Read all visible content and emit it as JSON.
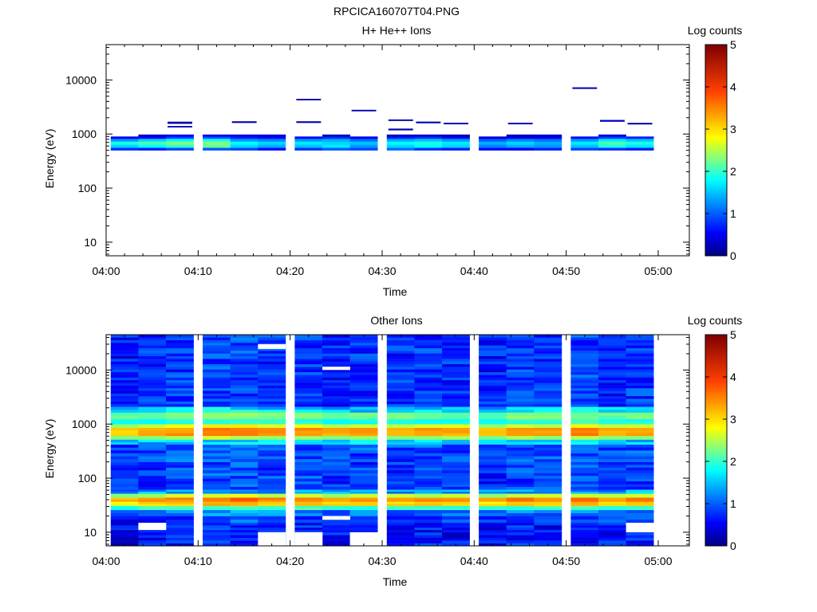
{
  "figure": {
    "title": "RPCICA160707T04.PNG"
  },
  "chart_data": [
    {
      "type": "heatmap",
      "title": "H+ He++ Ions",
      "xlabel": "Time",
      "ylabel": "Energy (eV)",
      "colorbar_label": "Log counts",
      "colorbar_ticks": [
        "0",
        "1",
        "2",
        "3",
        "4",
        "5"
      ],
      "x_ticks": [
        "04:00",
        "04:10",
        "04:20",
        "04:30",
        "04:40",
        "04:50",
        "05:00"
      ],
      "y_ticks": [
        "10",
        "100",
        "1000",
        "10000"
      ],
      "y_scale": "log",
      "ylim": [
        5.6,
        45000
      ],
      "clim": [
        0,
        5
      ],
      "time_bins": [
        "04:02",
        "04:05",
        "04:08",
        "04:12",
        "04:15",
        "04:18",
        "04:22",
        "04:25",
        "04:28",
        "04:32",
        "04:35",
        "04:38",
        "04:42",
        "04:45",
        "04:48",
        "04:52",
        "04:55",
        "04:58"
      ],
      "bands": [
        {
          "e_lo": 500,
          "e_hi": 560,
          "values": [
            0.8,
            0.7,
            0.9,
            1.0,
            0.9,
            0.6,
            0.8,
            1.0,
            0.9,
            1.1,
            0.8,
            0.7,
            0.6,
            0.5,
            0.7,
            0.9,
            0.8,
            0.7
          ]
        },
        {
          "e_lo": 560,
          "e_hi": 640,
          "values": [
            1.6,
            1.8,
            2.0,
            2.2,
            1.6,
            1.4,
            1.5,
            1.7,
            1.3,
            1.6,
            1.8,
            1.6,
            1.2,
            1.4,
            1.3,
            1.5,
            1.9,
            1.7
          ]
        },
        {
          "e_lo": 640,
          "e_hi": 730,
          "values": [
            1.9,
            2.1,
            2.3,
            2.3,
            1.8,
            1.6,
            1.7,
            1.6,
            1.5,
            1.8,
            1.9,
            1.7,
            1.4,
            1.6,
            1.4,
            1.7,
            2.1,
            1.9
          ]
        },
        {
          "e_lo": 730,
          "e_hi": 820,
          "values": [
            1.3,
            1.6,
            1.8,
            1.9,
            1.3,
            1.2,
            1.3,
            1.4,
            1.1,
            1.4,
            1.5,
            1.3,
            1.0,
            1.2,
            1.1,
            1.3,
            1.7,
            1.5
          ]
        },
        {
          "e_lo": 820,
          "e_hi": 900,
          "values": [
            0.5,
            0.6,
            0.9,
            1.0,
            0.7,
            0.6,
            0.6,
            0.8,
            0.5,
            0.7,
            0.8,
            0.6,
            0.4,
            0.5,
            0.5,
            0.6,
            0.9,
            0.7
          ]
        },
        {
          "e_lo": 900,
          "e_hi": 980,
          "values": [
            null,
            0.3,
            0.5,
            0.5,
            0.4,
            0.4,
            null,
            0.3,
            null,
            0.3,
            0.3,
            0.2,
            null,
            0.2,
            0.3,
            null,
            0.4,
            null
          ]
        }
      ],
      "sparse_marks": [
        {
          "time": "04:08",
          "e_lo": 1560,
          "e_hi": 1690,
          "value": 0.2
        },
        {
          "time": "04:08",
          "e_lo": 1340,
          "e_hi": 1410,
          "value": 0.2
        },
        {
          "time": "04:15",
          "e_lo": 1620,
          "e_hi": 1720,
          "value": 0.2
        },
        {
          "time": "04:22",
          "e_lo": 4250,
          "e_hi": 4480,
          "value": 0.2
        },
        {
          "time": "04:22",
          "e_lo": 1620,
          "e_hi": 1720,
          "value": 0.2
        },
        {
          "time": "04:28",
          "e_lo": 2650,
          "e_hi": 2800,
          "value": 0.2
        },
        {
          "time": "04:32",
          "e_lo": 1760,
          "e_hi": 1860,
          "value": 0.2
        },
        {
          "time": "04:32",
          "e_lo": 1180,
          "e_hi": 1260,
          "value": 0.2
        },
        {
          "time": "04:35",
          "e_lo": 1600,
          "e_hi": 1700,
          "value": 0.2
        },
        {
          "time": "04:38",
          "e_lo": 1530,
          "e_hi": 1620,
          "value": 0.2
        },
        {
          "time": "04:45",
          "e_lo": 1530,
          "e_hi": 1620,
          "value": 0.2
        },
        {
          "time": "04:52",
          "e_lo": 6900,
          "e_hi": 7300,
          "value": 0.2
        },
        {
          "time": "04:55",
          "e_lo": 1700,
          "e_hi": 1820,
          "value": 0.3
        },
        {
          "time": "04:58",
          "e_lo": 1520,
          "e_hi": 1610,
          "value": 0.2
        }
      ]
    },
    {
      "type": "heatmap",
      "title": "Other Ions",
      "xlabel": "Time",
      "ylabel": "Energy (eV)",
      "colorbar_label": "Log counts",
      "colorbar_ticks": [
        "0",
        "1",
        "2",
        "3",
        "4",
        "5"
      ],
      "x_ticks": [
        "04:00",
        "04:10",
        "04:20",
        "04:30",
        "04:40",
        "04:50",
        "05:00"
      ],
      "y_ticks": [
        "10",
        "100",
        "1000",
        "10000"
      ],
      "y_scale": "log",
      "ylim": [
        5.6,
        45000
      ],
      "clim": [
        0,
        5
      ],
      "time_bins": [
        "04:02",
        "04:05",
        "04:08",
        "04:12",
        "04:15",
        "04:18",
        "04:22",
        "04:25",
        "04:28",
        "04:32",
        "04:35",
        "04:38",
        "04:42",
        "04:45",
        "04:48",
        "04:52",
        "04:55",
        "04:58"
      ],
      "profile": [
        {
          "e_lo": 5.6,
          "e_hi": 10,
          "level": 0.6
        },
        {
          "e_lo": 10,
          "e_hi": 15,
          "level": 0.6
        },
        {
          "e_lo": 15,
          "e_hi": 20,
          "level": 0.8
        },
        {
          "e_lo": 20,
          "e_hi": 26,
          "level": 1.1
        },
        {
          "e_lo": 26,
          "e_hi": 31,
          "level": 2.0
        },
        {
          "e_lo": 31,
          "e_hi": 37,
          "level": 3.0
        },
        {
          "e_lo": 37,
          "e_hi": 44,
          "level": 3.4
        },
        {
          "e_lo": 44,
          "e_hi": 52,
          "level": 2.5
        },
        {
          "e_lo": 52,
          "e_hi": 62,
          "level": 1.3
        },
        {
          "e_lo": 62,
          "e_hi": 200,
          "level": 0.8
        },
        {
          "e_lo": 200,
          "e_hi": 420,
          "level": 0.9
        },
        {
          "e_lo": 420,
          "e_hi": 520,
          "level": 1.5
        },
        {
          "e_lo": 520,
          "e_hi": 610,
          "level": 2.4
        },
        {
          "e_lo": 610,
          "e_hi": 860,
          "level": 3.3
        },
        {
          "e_lo": 860,
          "e_hi": 1000,
          "level": 2.6
        },
        {
          "e_lo": 1000,
          "e_hi": 1250,
          "level": 1.9
        },
        {
          "e_lo": 1250,
          "e_hi": 1650,
          "level": 2.2
        },
        {
          "e_lo": 1650,
          "e_hi": 2100,
          "level": 1.5
        },
        {
          "e_lo": 2100,
          "e_hi": 45000,
          "level": 0.75
        }
      ],
      "column_offsets": [
        -0.2,
        0.0,
        0.1,
        0.25,
        0.3,
        0.1,
        0.15,
        0.0,
        0.05,
        0.0,
        0.1,
        0.0,
        -0.1,
        0.15,
        0.05,
        0.2,
        0.0,
        0.1
      ],
      "empty_cells": [
        {
          "time": "04:05",
          "e_lo": 11,
          "e_hi": 15
        },
        {
          "time": "04:18",
          "e_lo": 5.6,
          "e_hi": 10
        },
        {
          "time": "04:22",
          "e_lo": 5.6,
          "e_hi": 10
        },
        {
          "time": "04:25",
          "e_lo": 17,
          "e_hi": 20
        },
        {
          "time": "04:28",
          "e_lo": 5.6,
          "e_hi": 10
        },
        {
          "time": "04:58",
          "e_lo": 10,
          "e_hi": 15
        },
        {
          "time": "04:18",
          "e_lo": 24500,
          "e_hi": 30000
        },
        {
          "time": "04:25",
          "e_lo": 10000,
          "e_hi": 11500
        }
      ]
    }
  ]
}
